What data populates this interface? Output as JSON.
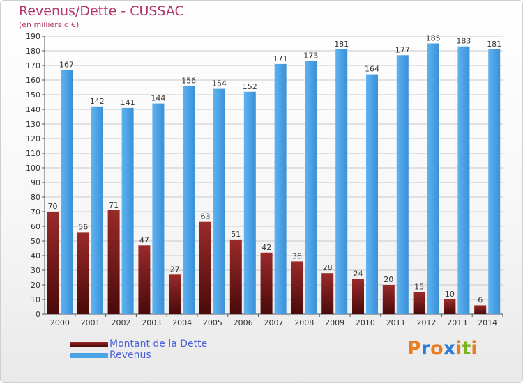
{
  "title": "Revenus/Dette - CUSSAC",
  "subtitle": "(en milliers d'€)",
  "logo": {
    "text": "Proxiti",
    "letters": [
      "P",
      "r",
      "o",
      "x",
      "i",
      "t",
      "i"
    ],
    "colors": [
      "#e87d22",
      "#2b7cd3",
      "#e87d22",
      "#2b7cd3",
      "#e87d22",
      "#7ab51d",
      "#e87d22"
    ]
  },
  "colors": {
    "debt": "#7a1a1a",
    "revenue": "#4ba3e8",
    "title": "#b3336b",
    "legend_text": "#4a63d9"
  },
  "chart_data": {
    "type": "bar",
    "title": "Revenus/Dette - CUSSAC",
    "ylabel": "(en milliers d'€)",
    "ylim": [
      0,
      190
    ],
    "ytick_step": 10,
    "grid": true,
    "legend_position": "bottom-left",
    "categories": [
      "2000",
      "2001",
      "2002",
      "2003",
      "2004",
      "2005",
      "2006",
      "2007",
      "2008",
      "2009",
      "2010",
      "2011",
      "2012",
      "2013",
      "2014"
    ],
    "series": [
      {
        "name": "Montant de la Dette",
        "values": [
          70,
          56,
          71,
          47,
          27,
          63,
          51,
          42,
          36,
          28,
          24,
          20,
          15,
          10,
          6
        ]
      },
      {
        "name": "Revenus",
        "values": [
          167,
          142,
          141,
          144,
          156,
          154,
          152,
          171,
          173,
          181,
          164,
          177,
          185,
          183,
          181
        ]
      }
    ]
  }
}
